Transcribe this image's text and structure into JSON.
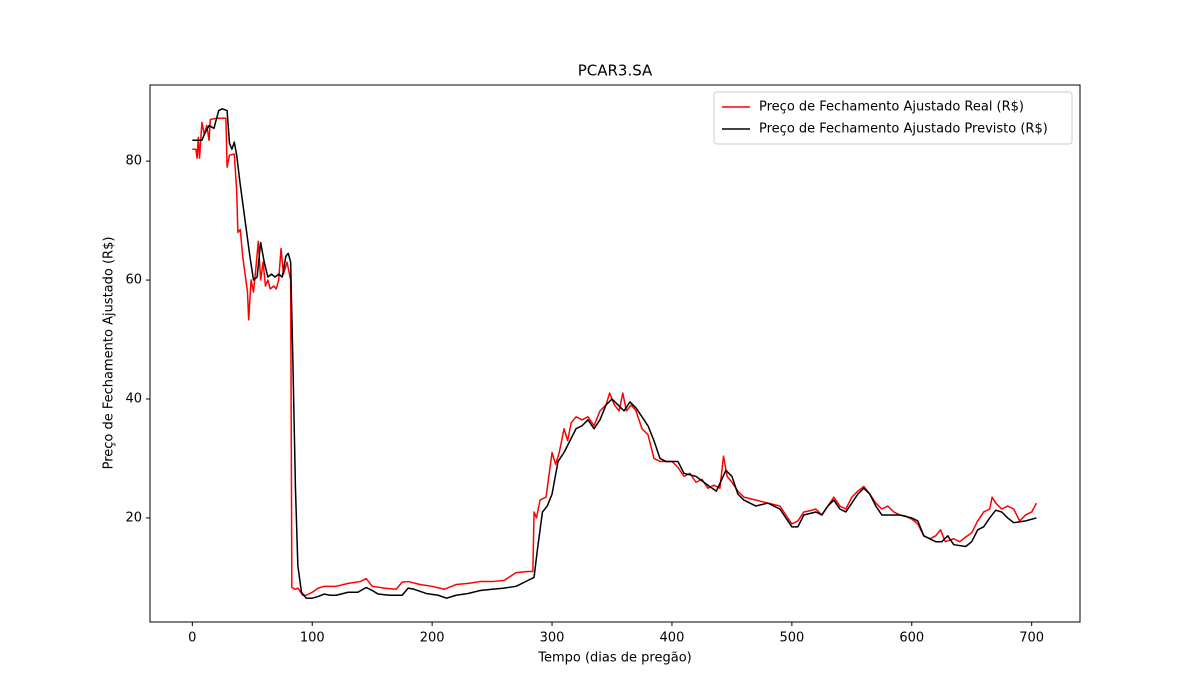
{
  "chart_data": {
    "type": "line",
    "title": "PCAR3.SA",
    "x_label": "Tempo (dias de pregão)",
    "y_label": "Preço de Fechamento Ajustado (R$)",
    "xlim": [
      -35.3,
      740.3
    ],
    "ylim": [
      2.5,
      92.8
    ],
    "xticks": [
      0,
      100,
      200,
      300,
      400,
      500,
      600,
      700
    ],
    "yticks": [
      20,
      40,
      60,
      80
    ],
    "legend": "upper right",
    "series": [
      {
        "name": "Preço de Fechamento Ajustado Real (R$)",
        "color": "#ff0000",
        "x": [
          0,
          3,
          4,
          5,
          6,
          8,
          10,
          12,
          14,
          15,
          20,
          28,
          29,
          31,
          35,
          37,
          38,
          40,
          42,
          44,
          46,
          47,
          49,
          51,
          53,
          55,
          57,
          59,
          61,
          63,
          65,
          68,
          70,
          72,
          74,
          76,
          79,
          82,
          83,
          86,
          88,
          92,
          95,
          100,
          105,
          110,
          120,
          130,
          140,
          145,
          150,
          160,
          170,
          175,
          180,
          190,
          200,
          210,
          220,
          230,
          240,
          250,
          260,
          270,
          280,
          284,
          285,
          287,
          290,
          295,
          300,
          303,
          306,
          310,
          313,
          316,
          320,
          325,
          330,
          335,
          340,
          345,
          348,
          352,
          356,
          359,
          362,
          366,
          370,
          375,
          380,
          385,
          390,
          400,
          405,
          410,
          415,
          420,
          425,
          430,
          435,
          440,
          443,
          446,
          450,
          455,
          460,
          470,
          480,
          490,
          500,
          505,
          510,
          515,
          520,
          525,
          530,
          535,
          540,
          545,
          550,
          555,
          560,
          565,
          570,
          575,
          580,
          585,
          590,
          595,
          600,
          605,
          610,
          615,
          620,
          624,
          628,
          635,
          640,
          645,
          650,
          655,
          660,
          665,
          667,
          670,
          675,
          680,
          685,
          690,
          695,
          700,
          704
        ],
        "values": [
          82,
          82,
          80.5,
          84,
          80.5,
          86.5,
          84.5,
          86,
          83.5,
          87,
          87.2,
          87.2,
          79,
          81,
          81.2,
          75,
          68,
          68.5,
          64,
          61,
          58,
          53.3,
          60,
          58,
          62,
          66.5,
          60,
          63,
          59,
          60,
          58.5,
          59,
          58.5,
          60,
          65.3,
          61,
          63,
          60,
          8.3,
          8,
          8.2,
          7,
          7,
          7.5,
          8.2,
          8.5,
          8.5,
          9,
          9.3,
          9.8,
          8.5,
          8.2,
          8,
          9.2,
          9.3,
          8.8,
          8.5,
          8,
          8.8,
          9,
          9.3,
          9.3,
          9.5,
          10.8,
          11,
          11,
          21,
          20,
          23,
          23.5,
          31,
          29,
          31,
          35,
          33,
          36,
          37,
          36.5,
          37,
          35.5,
          38,
          39,
          41,
          39,
          38,
          41,
          38,
          39,
          38,
          35,
          34,
          30,
          29.5,
          29.5,
          28.5,
          27,
          27.5,
          26,
          26.5,
          25,
          25.5,
          25,
          30.4,
          27,
          26,
          24.5,
          23.5,
          23,
          22.5,
          22,
          19,
          19.5,
          21,
          21.2,
          21.5,
          20.5,
          22,
          23.5,
          22,
          21.5,
          23.5,
          24.5,
          25.3,
          24,
          22.5,
          21.5,
          22,
          21,
          20.5,
          20.3,
          19.8,
          19,
          17,
          16.5,
          17,
          18,
          16,
          16.5,
          16,
          16.8,
          17.5,
          19.5,
          21,
          21.5,
          23.5,
          22.5,
          21.5,
          22,
          21.5,
          19.5,
          20.5,
          21,
          22.5
        ]
      },
      {
        "name": "Preço de Fechamento Ajustado Previsto (R$)",
        "color": "#000000",
        "x": [
          0,
          8,
          10,
          14,
          18,
          22,
          25,
          29,
          31,
          33,
          35,
          37,
          40,
          44,
          48,
          51,
          54,
          57,
          60,
          63,
          66,
          69,
          72,
          75,
          78,
          80,
          82,
          84,
          86,
          88,
          91,
          95,
          100,
          105,
          110,
          115,
          120,
          130,
          138,
          145,
          150,
          155,
          165,
          175,
          180,
          185,
          195,
          205,
          212,
          220,
          230,
          240,
          250,
          260,
          270,
          280,
          285,
          288,
          292,
          296,
          300,
          305,
          310,
          315,
          320,
          325,
          330,
          335,
          340,
          345,
          350,
          355,
          360,
          365,
          370,
          375,
          380,
          385,
          390,
          395,
          405,
          410,
          420,
          430,
          437,
          445,
          450,
          455,
          460,
          470,
          480,
          490,
          500,
          505,
          510,
          520,
          525,
          530,
          535,
          540,
          545,
          555,
          560,
          565,
          570,
          575,
          580,
          590,
          600,
          605,
          610,
          620,
          625,
          630,
          635,
          645,
          650,
          655,
          660,
          665,
          670,
          675,
          680,
          685,
          695,
          704
        ],
        "values": [
          83.5,
          83.5,
          84.5,
          86,
          85.5,
          88.5,
          88.8,
          88.5,
          83,
          82,
          83.2,
          81,
          76,
          70,
          64,
          60,
          60.5,
          66.3,
          63,
          60.5,
          61,
          60.5,
          61,
          60.5,
          64,
          64.5,
          63,
          45,
          25,
          12,
          7.5,
          6.5,
          6.5,
          6.8,
          7.2,
          7,
          7,
          7.5,
          7.5,
          8.3,
          7.8,
          7.2,
          7,
          7,
          8.2,
          8,
          7.3,
          7,
          6.5,
          7,
          7.3,
          7.8,
          8,
          8.2,
          8.5,
          9.5,
          10,
          15,
          21,
          22,
          24,
          29.5,
          31,
          33,
          35,
          35.5,
          36.5,
          35,
          36.5,
          39,
          40,
          39,
          38,
          39.5,
          38.5,
          37,
          35.5,
          33,
          30,
          29.5,
          29.5,
          27.5,
          27,
          25.5,
          24.5,
          28,
          27,
          24,
          23,
          22,
          22.5,
          21.5,
          18.5,
          18.5,
          20.5,
          21,
          20.5,
          22,
          23,
          21.5,
          21,
          24,
          25,
          24,
          22,
          20.5,
          20.5,
          20.5,
          20,
          19.5,
          17,
          16,
          16,
          17,
          15.5,
          15.2,
          16,
          18,
          18.5,
          20,
          21.3,
          21,
          20,
          19.2,
          19.5,
          20
        ]
      }
    ]
  }
}
